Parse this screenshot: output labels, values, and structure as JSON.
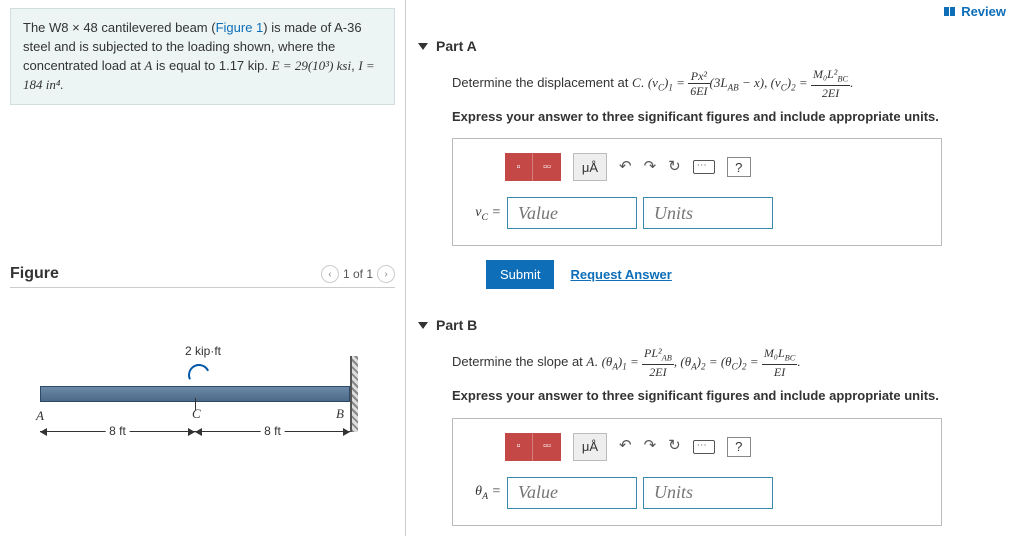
{
  "review_label": "Review",
  "problem": {
    "text_before": "The W8 × 48 cantilevered beam (",
    "figure_link": "Figure 1",
    "text_mid": ") is made of A-36 steel and is subjected to the loading shown, where the concentrated load at ",
    "var_A": "A",
    "text_after1": " is equal to 1.17 kip. ",
    "E_expr": "E = 29(10³) ksi",
    "sep": ", ",
    "I_expr": "I = 184 in⁴."
  },
  "figure": {
    "title": "Figure",
    "pager": "1 of 1",
    "moment": "2 kip·ft",
    "ptA": "A",
    "ptB": "B",
    "ptC": "C",
    "span": "8 ft"
  },
  "partA": {
    "title": "Part A",
    "prompt_lead": "Determine the displacement at ",
    "prompt_var": "C",
    "instr": "Express your answer to three significant figures and include appropriate units.",
    "mu": "μÅ",
    "var_label": "v_C =",
    "value_ph": "Value",
    "units_ph": "Units",
    "submit": "Submit",
    "request": "Request Answer"
  },
  "partB": {
    "title": "Part B",
    "prompt_lead": "Determine the slope at ",
    "prompt_var": "A",
    "instr": "Express your answer to three significant figures and include appropriate units.",
    "mu": "μÅ",
    "var_label": "θ_A =",
    "value_ph": "Value",
    "units_ph": "Units"
  },
  "help": "?"
}
